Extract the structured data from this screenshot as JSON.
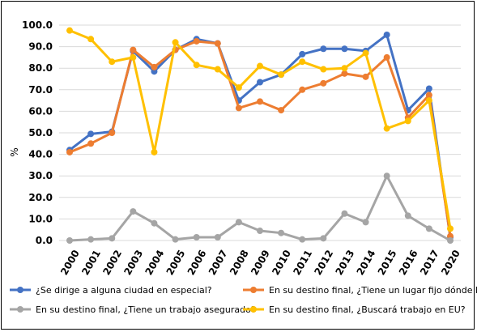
{
  "chart_data": {
    "type": "line",
    "title": "",
    "xlabel": "",
    "ylabel": "%",
    "ylim": [
      0,
      100
    ],
    "ytick_step": 10,
    "grid": "horizontal",
    "legend_position": "bottom",
    "categories": [
      "2000",
      "2001",
      "2002",
      "2003",
      "2004",
      "2005",
      "2006",
      "2007",
      "2008",
      "2009",
      "2010",
      "2011",
      "2012",
      "2013",
      "2014",
      "2015",
      "2016",
      "2017",
      "2020"
    ],
    "series": [
      {
        "name": "¿Se dirige a alguna ciudad en especial?",
        "color": "#4472C4",
        "values": [
          42.0,
          49.5,
          50.5,
          88.0,
          78.5,
          88.5,
          93.5,
          91.5,
          65.0,
          73.5,
          77.0,
          86.5,
          89.0,
          89.0,
          88.0,
          95.5,
          60.5,
          70.5,
          1.5
        ]
      },
      {
        "name": "En su destino final, ¿Tiene un lugar fijo dónde llegar?",
        "color": "#ED7D31",
        "values": [
          41.0,
          45.0,
          50.0,
          88.5,
          80.5,
          88.5,
          92.5,
          91.5,
          61.5,
          64.5,
          60.5,
          70.0,
          73.0,
          77.5,
          76.0,
          85.0,
          57.0,
          67.5,
          2.0
        ]
      },
      {
        "name": "En su destino final, ¿Tiene un trabajo asegurado?",
        "color": "#A5A5A5",
        "values": [
          0.0,
          0.5,
          1.0,
          13.5,
          8.0,
          0.5,
          1.5,
          1.5,
          8.5,
          4.5,
          3.5,
          0.5,
          1.0,
          12.5,
          8.5,
          30.0,
          11.5,
          5.5,
          0.0
        ]
      },
      {
        "name": "En su destino final, ¿Buscará trabajo en EU?",
        "color": "#FFC000",
        "values": [
          97.5,
          93.5,
          83.0,
          85.0,
          41.0,
          92.0,
          81.5,
          79.5,
          71.0,
          81.0,
          77.0,
          83.0,
          79.5,
          80.0,
          87.0,
          52.0,
          55.5,
          65.0,
          5.5
        ]
      }
    ]
  }
}
